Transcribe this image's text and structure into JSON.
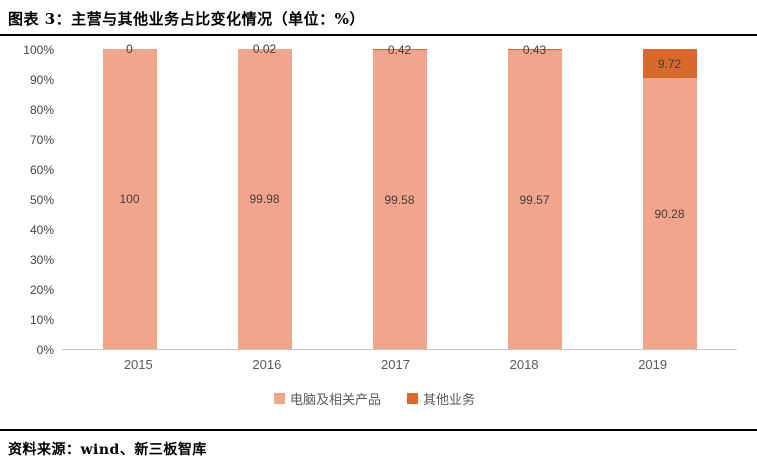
{
  "header": {
    "title": "图表 3：主营与其他业务占比变化情况（单位：%）"
  },
  "footer": {
    "source": "资料来源：wind、新三板智库"
  },
  "colors": {
    "main_series": "#F2A58B",
    "other_series": "#D8692B",
    "axis_line": "#C6C6C6",
    "value_label_text": "#3F3F3F",
    "tick_text": "#595959",
    "rule": "#000000"
  },
  "chart_data": {
    "type": "bar",
    "subtype": "stacked-100-percent-column",
    "title": "主营与其他业务占比变化情况",
    "unit": "%",
    "categories": [
      "2015",
      "2016",
      "2017",
      "2018",
      "2019"
    ],
    "series": [
      {
        "name": "电脑及相关产品",
        "color": "#F2A58B",
        "values": [
          100,
          99.98,
          99.58,
          99.57,
          90.28
        ],
        "labels": [
          "100",
          "99.98",
          "99.58",
          "99.57",
          "90.28"
        ]
      },
      {
        "name": "其他业务",
        "color": "#D8692B",
        "values": [
          0,
          0.02,
          0.42,
          0.43,
          9.72
        ],
        "labels": [
          "0",
          "0.02",
          "0.42",
          "0.43",
          "9.72"
        ]
      }
    ],
    "y_ticks": [
      "100%",
      "90%",
      "80%",
      "70%",
      "60%",
      "50%",
      "40%",
      "30%",
      "20%",
      "10%",
      "0%"
    ],
    "ylim": [
      0,
      100
    ],
    "grid": false,
    "legend_position": "bottom"
  }
}
